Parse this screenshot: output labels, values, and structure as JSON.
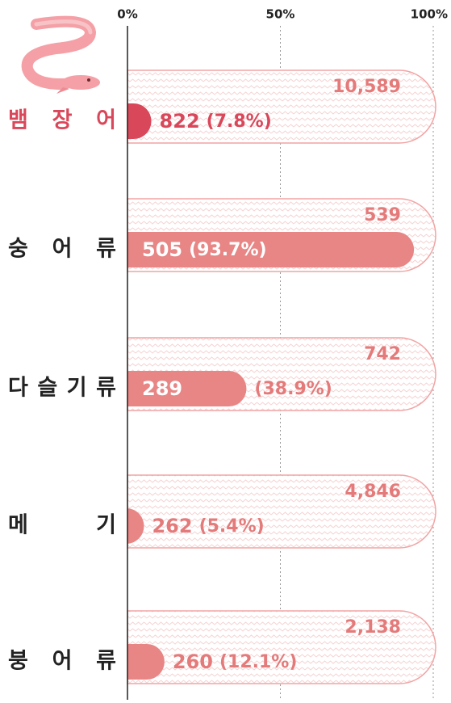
{
  "chart_data": {
    "type": "progress-bar",
    "categories": [
      "뱀장어",
      "숭어류",
      "다슬기류",
      "메기",
      "붕어류"
    ],
    "totals": [
      10589,
      539,
      742,
      4846,
      2138
    ],
    "total_labels": [
      "10,589",
      "539",
      "742",
      "4,846",
      "2,138"
    ],
    "counts": [
      822,
      505,
      289,
      262,
      260
    ],
    "values": [
      7.8,
      93.7,
      38.9,
      5.4,
      12.1
    ],
    "value_labels": [
      "(7.8%)",
      "(93.7%)",
      "(38.9%)",
      "(5.4%)",
      "(12.1%)"
    ],
    "xlim": [
      0,
      100
    ],
    "xticks": [
      {
        "value": 0,
        "label": "0%"
      },
      {
        "value": 50,
        "label": "50%"
      },
      {
        "value": 100,
        "label": "100%"
      }
    ],
    "grid": true,
    "color": "#e88585",
    "highlight": "뱀장어",
    "highlight_color": "#d9475a"
  }
}
